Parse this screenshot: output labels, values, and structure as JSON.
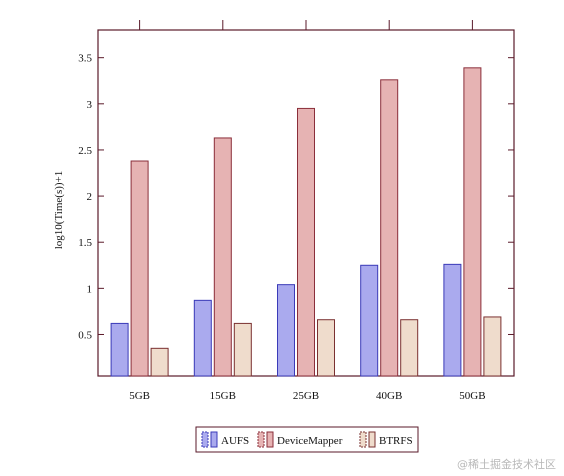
{
  "chart_data": {
    "type": "bar",
    "title": "",
    "xlabel": "",
    "ylabel": "log10(Time(s))+1",
    "categories": [
      "5GB",
      "15GB",
      "25GB",
      "40GB",
      "50GB"
    ],
    "series": [
      {
        "name": "AUFS",
        "values": [
          0.62,
          0.87,
          1.04,
          1.25,
          1.26
        ],
        "color": "#aaaaee",
        "stroke": "#3a3ab8"
      },
      {
        "name": "DeviceMapper",
        "values": [
          2.38,
          2.63,
          2.95,
          3.26,
          3.39
        ],
        "color": "#e6b3b3",
        "stroke": "#8a2e3a"
      },
      {
        "name": "BTRFS",
        "values": [
          0.35,
          0.62,
          0.66,
          0.66,
          0.69
        ],
        "color": "#efdccc",
        "stroke": "#7a3030"
      }
    ],
    "yticks": [
      "0.5",
      "1",
      "1.5",
      "2",
      "2.5",
      "3",
      "3.5"
    ],
    "ylim": [
      0.05,
      3.8
    ],
    "grid": false,
    "legend_position": "bottom-center"
  },
  "watermark": "@稀土掘金技术社区"
}
